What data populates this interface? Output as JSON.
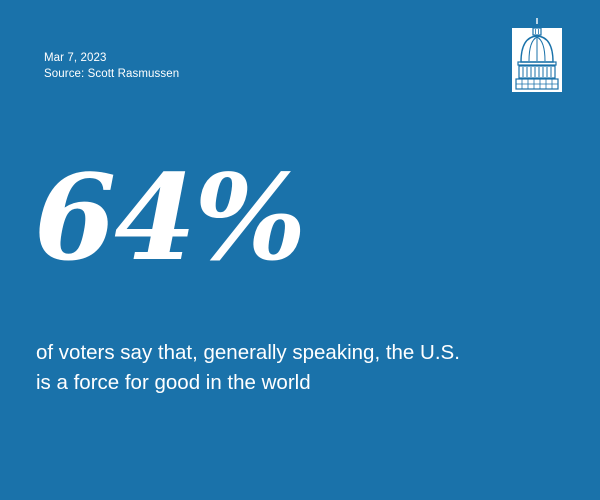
{
  "header": {
    "date": "Mar 7, 2023",
    "source": "Source: Scott Rasmussen"
  },
  "logo": {
    "icon": "capitol-dome-icon"
  },
  "stat": {
    "value": "64%"
  },
  "statement": {
    "line1": "of voters say that, generally speaking, the U.S.",
    "line2": "is a force for good in the world"
  },
  "colors": {
    "background": "#1a72aa",
    "text": "#ffffff"
  }
}
